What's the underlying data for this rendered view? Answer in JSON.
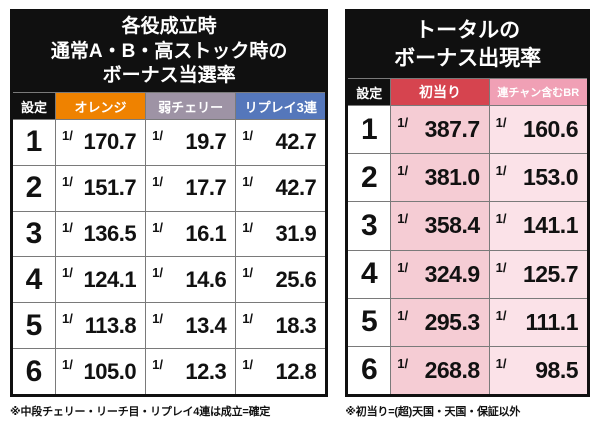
{
  "chart_data": [
    {
      "type": "table",
      "title_lines": [
        "各役成立時",
        "通常A・B・高ストック時の",
        "ボーナス当選率"
      ],
      "setting_label": "設定",
      "columns": [
        "オレンジ",
        "弱チェリー",
        "リプレイ3連"
      ],
      "column_colors": [
        "#ef8200",
        "#9e93a5",
        "#5577bb"
      ],
      "settings": [
        "1",
        "2",
        "3",
        "4",
        "5",
        "6"
      ],
      "prefix": "1/",
      "rows": [
        [
          "170.7",
          "19.7",
          "42.7"
        ],
        [
          "151.7",
          "17.7",
          "42.7"
        ],
        [
          "136.5",
          "16.1",
          "31.9"
        ],
        [
          "124.1",
          "14.6",
          "25.6"
        ],
        [
          "113.8",
          "13.4",
          "18.3"
        ],
        [
          "105.0",
          "12.3",
          "12.8"
        ]
      ],
      "footnote": "※中段チェリー・リーチ目・リプレイ4連は成立=確定"
    },
    {
      "type": "table",
      "title_lines": [
        "トータルの",
        "ボーナス出現率"
      ],
      "setting_label": "設定",
      "columns": [
        "初当り",
        "連チャン含むBR"
      ],
      "column_colors": [
        "#d6444f",
        "#f0a0b5"
      ],
      "cell_colors": [
        "#f5ccd4",
        "#fbe2e8"
      ],
      "settings": [
        "1",
        "2",
        "3",
        "4",
        "5",
        "6"
      ],
      "prefix": "1/",
      "rows": [
        [
          "387.7",
          "160.6"
        ],
        [
          "381.0",
          "153.0"
        ],
        [
          "358.4",
          "141.1"
        ],
        [
          "324.9",
          "125.7"
        ],
        [
          "295.3",
          "111.1"
        ],
        [
          "268.8",
          "98.5"
        ]
      ],
      "footnote": "※初当り=(超)天国・天国・保証以外"
    }
  ],
  "colors": {
    "background": "#ffffff",
    "title_bg": "#101010",
    "grid_line": "#7a7a7a"
  }
}
